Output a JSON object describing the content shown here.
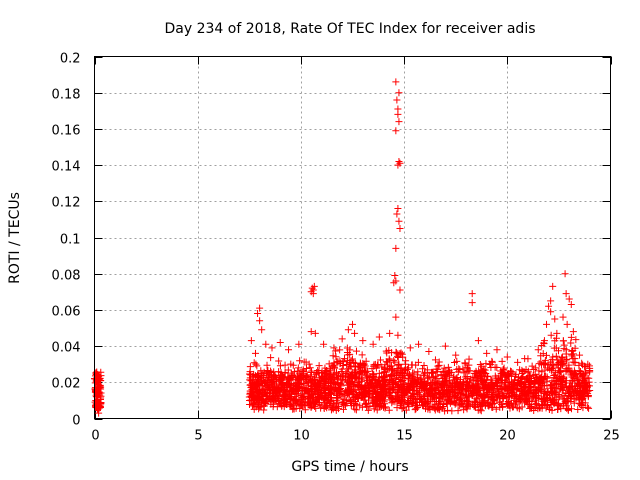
{
  "chart_data": {
    "type": "scatter",
    "title": "Day 234 of 2018, Rate Of TEC Index for receiver adis",
    "xlabel": "GPS time / hours",
    "ylabel": "ROTI / TECUs",
    "xlim": [
      0,
      25
    ],
    "ylim": [
      0,
      0.2
    ],
    "x_ticks": [
      0,
      5,
      10,
      15,
      20,
      25
    ],
    "x_tick_labels": [
      "0",
      "5",
      "10",
      "15",
      "20",
      "25"
    ],
    "y_ticks": [
      0,
      0.02,
      0.04,
      0.06,
      0.08,
      0.1,
      0.12,
      0.14,
      0.16,
      0.18,
      0.2
    ],
    "y_tick_labels": [
      "0",
      "0.02",
      "0.04",
      "0.06",
      "0.08",
      "0.1",
      "0.12",
      "0.14",
      "0.16",
      "0.18",
      "0.2"
    ],
    "grid": true,
    "marker": "+",
    "series_color": "#ff0000",
    "series": [
      {
        "name": "ROTI",
        "points": [
          [
            0.0,
            0.022
          ],
          [
            0.05,
            0.015
          ],
          [
            0.1,
            0.025
          ],
          [
            0.15,
            0.01
          ],
          [
            0.2,
            0.019
          ],
          [
            0.25,
            0.013
          ],
          [
            0.3,
            0.021
          ],
          [
            0.1,
            0.006
          ],
          [
            0.2,
            0.003
          ],
          [
            0.3,
            0.008
          ],
          [
            7.6,
            0.043
          ],
          [
            7.8,
            0.036
          ],
          [
            7.9,
            0.058
          ],
          [
            8.0,
            0.061
          ],
          [
            8.0,
            0.054
          ],
          [
            8.1,
            0.049
          ],
          [
            8.3,
            0.041
          ],
          [
            8.6,
            0.039
          ],
          [
            9.0,
            0.042
          ],
          [
            9.4,
            0.038
          ],
          [
            9.9,
            0.041
          ],
          [
            10.5,
            0.07
          ],
          [
            10.55,
            0.072
          ],
          [
            10.6,
            0.071
          ],
          [
            10.65,
            0.073
          ],
          [
            10.6,
            0.069
          ],
          [
            10.5,
            0.048
          ],
          [
            10.7,
            0.047
          ],
          [
            11.1,
            0.041
          ],
          [
            11.6,
            0.039
          ],
          [
            12.0,
            0.044
          ],
          [
            12.3,
            0.049
          ],
          [
            12.5,
            0.052
          ],
          [
            12.6,
            0.047
          ],
          [
            13.0,
            0.043
          ],
          [
            13.5,
            0.041
          ],
          [
            13.8,
            0.045
          ],
          [
            14.3,
            0.047
          ],
          [
            14.5,
            0.075
          ],
          [
            14.55,
            0.079
          ],
          [
            14.6,
            0.076
          ],
          [
            14.6,
            0.094
          ],
          [
            14.65,
            0.113
          ],
          [
            14.7,
            0.116
          ],
          [
            14.75,
            0.109
          ],
          [
            14.8,
            0.105
          ],
          [
            14.7,
            0.14
          ],
          [
            14.75,
            0.142
          ],
          [
            14.8,
            0.141
          ],
          [
            14.6,
            0.186
          ],
          [
            14.65,
            0.176
          ],
          [
            14.7,
            0.171
          ],
          [
            14.75,
            0.164
          ],
          [
            14.6,
            0.159
          ],
          [
            14.7,
            0.168
          ],
          [
            14.75,
            0.18
          ],
          [
            14.8,
            0.071
          ],
          [
            14.6,
            0.056
          ],
          [
            14.7,
            0.046
          ],
          [
            15.3,
            0.039
          ],
          [
            15.7,
            0.041
          ],
          [
            16.2,
            0.037
          ],
          [
            17.0,
            0.04
          ],
          [
            17.5,
            0.035
          ],
          [
            18.3,
            0.069
          ],
          [
            18.3,
            0.064
          ],
          [
            18.6,
            0.043
          ],
          [
            19.0,
            0.036
          ],
          [
            19.5,
            0.038
          ],
          [
            20.0,
            0.034
          ],
          [
            20.5,
            0.031
          ],
          [
            21.0,
            0.033
          ],
          [
            21.5,
            0.038
          ],
          [
            21.8,
            0.043
          ],
          [
            21.9,
            0.052
          ],
          [
            22.0,
            0.062
          ],
          [
            22.1,
            0.065
          ],
          [
            22.1,
            0.059
          ],
          [
            22.2,
            0.073
          ],
          [
            22.3,
            0.055
          ],
          [
            22.4,
            0.047
          ],
          [
            22.7,
            0.056
          ],
          [
            22.8,
            0.08
          ],
          [
            22.85,
            0.069
          ],
          [
            22.9,
            0.052
          ],
          [
            23.0,
            0.066
          ],
          [
            23.1,
            0.063
          ],
          [
            23.2,
            0.048
          ],
          [
            23.5,
            0.035
          ],
          [
            23.9,
            0.03
          ]
        ]
      }
    ]
  }
}
